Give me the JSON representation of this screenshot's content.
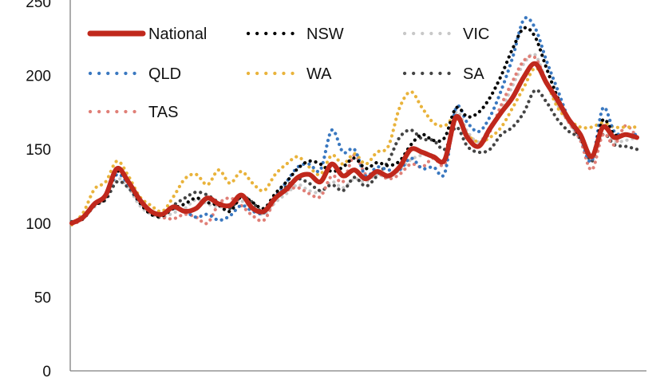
{
  "chart_data": {
    "type": "line",
    "title": "",
    "xlabel": "",
    "ylabel": "",
    "ylim": [
      0,
      250
    ],
    "yticks": [
      0,
      50,
      100,
      150,
      200,
      250
    ],
    "grid": false,
    "legend_position": "top-left, inside plot, 3 columns",
    "x": [
      0,
      2,
      4,
      6,
      8,
      10,
      12,
      14,
      16,
      18,
      20,
      22,
      24,
      26,
      28,
      30,
      32,
      34,
      36,
      38,
      40,
      42,
      44,
      46,
      48,
      50,
      52,
      54,
      56,
      58,
      60,
      62,
      64,
      66,
      68,
      70,
      72,
      74,
      76,
      78,
      80,
      82,
      84,
      86,
      88,
      90,
      92,
      94,
      96,
      98,
      100
    ],
    "series": [
      {
        "name": "National",
        "color": "#c0281c",
        "style": "solid",
        "values": [
          100,
          104,
          113,
          119,
          137,
          128,
          116,
          108,
          106,
          111,
          108,
          110,
          117,
          113,
          112,
          119,
          110,
          108,
          117,
          123,
          131,
          133,
          128,
          140,
          132,
          136,
          130,
          135,
          132,
          138,
          150,
          148,
          145,
          143,
          172,
          158,
          152,
          164,
          175,
          185,
          199,
          208,
          195,
          183,
          170,
          160,
          145,
          165,
          158,
          160,
          158
        ]
      },
      {
        "name": "NSW",
        "color": "#000000",
        "style": "dotted",
        "values": [
          100,
          103,
          112,
          117,
          135,
          127,
          114,
          106,
          105,
          110,
          113,
          117,
          114,
          112,
          108,
          118,
          114,
          110,
          120,
          128,
          137,
          142,
          140,
          135,
          138,
          144,
          137,
          141,
          139,
          142,
          153,
          160,
          156,
          158,
          178,
          172,
          175,
          185,
          200,
          218,
          232,
          226,
          205,
          185,
          170,
          158,
          145,
          170,
          160,
          160,
          158
        ]
      },
      {
        "name": "VIC",
        "color": "#c8c8c8",
        "style": "dotted",
        "values": [
          100,
          104,
          111,
          117,
          130,
          124,
          112,
          106,
          104,
          107,
          110,
          116,
          113,
          111,
          112,
          115,
          110,
          106,
          114,
          120,
          126,
          122,
          121,
          128,
          124,
          130,
          128,
          133,
          131,
          136,
          143,
          146,
          146,
          142,
          175,
          162,
          155,
          165,
          177,
          193,
          208,
          214,
          195,
          180,
          168,
          157,
          143,
          160,
          155,
          156,
          158
        ]
      },
      {
        "name": "QLD",
        "color": "#3a78c0",
        "style": "dotted",
        "values": [
          100,
          104,
          113,
          118,
          133,
          126,
          114,
          107,
          106,
          110,
          108,
          104,
          106,
          102,
          105,
          112,
          108,
          107,
          118,
          128,
          138,
          140,
          136,
          163,
          148,
          150,
          132,
          138,
          136,
          136,
          144,
          137,
          138,
          134,
          178,
          168,
          162,
          172,
          190,
          212,
          238,
          232,
          210,
          190,
          170,
          158,
          142,
          178,
          162,
          160,
          160
        ]
      },
      {
        "name": "WA",
        "color": "#e9b33b",
        "style": "dotted",
        "values": [
          99,
          107,
          123,
          128,
          142,
          132,
          118,
          112,
          108,
          118,
          130,
          133,
          126,
          136,
          127,
          135,
          127,
          122,
          133,
          140,
          145,
          138,
          133,
          146,
          140,
          147,
          140,
          148,
          152,
          178,
          189,
          178,
          168,
          166,
          172,
          160,
          155,
          158,
          165,
          178,
          192,
          205,
          195,
          178,
          170,
          165,
          165,
          168,
          165,
          165,
          165
        ]
      },
      {
        "name": "SA",
        "color": "#444444",
        "style": "dotted",
        "values": [
          101,
          104,
          112,
          116,
          128,
          124,
          114,
          107,
          104,
          112,
          117,
          121,
          119,
          114,
          110,
          118,
          114,
          107,
          116,
          125,
          130,
          127,
          122,
          126,
          122,
          131,
          125,
          132,
          142,
          158,
          163,
          157,
          156,
          150,
          165,
          152,
          148,
          150,
          160,
          165,
          175,
          190,
          182,
          170,
          162,
          157,
          142,
          160,
          153,
          152,
          150
        ]
      },
      {
        "name": "TAS",
        "color": "#e07f77",
        "style": "dotted",
        "values": [
          99,
          103,
          112,
          118,
          135,
          127,
          114,
          108,
          104,
          103,
          106,
          104,
          100,
          113,
          117,
          112,
          105,
          102,
          116,
          122,
          124,
          120,
          118,
          132,
          128,
          146,
          133,
          134,
          130,
          133,
          140,
          138,
          144,
          140,
          170,
          160,
          152,
          162,
          180,
          196,
          210,
          212,
          196,
          180,
          168,
          156,
          136,
          160,
          153,
          166,
          158
        ]
      }
    ]
  }
}
